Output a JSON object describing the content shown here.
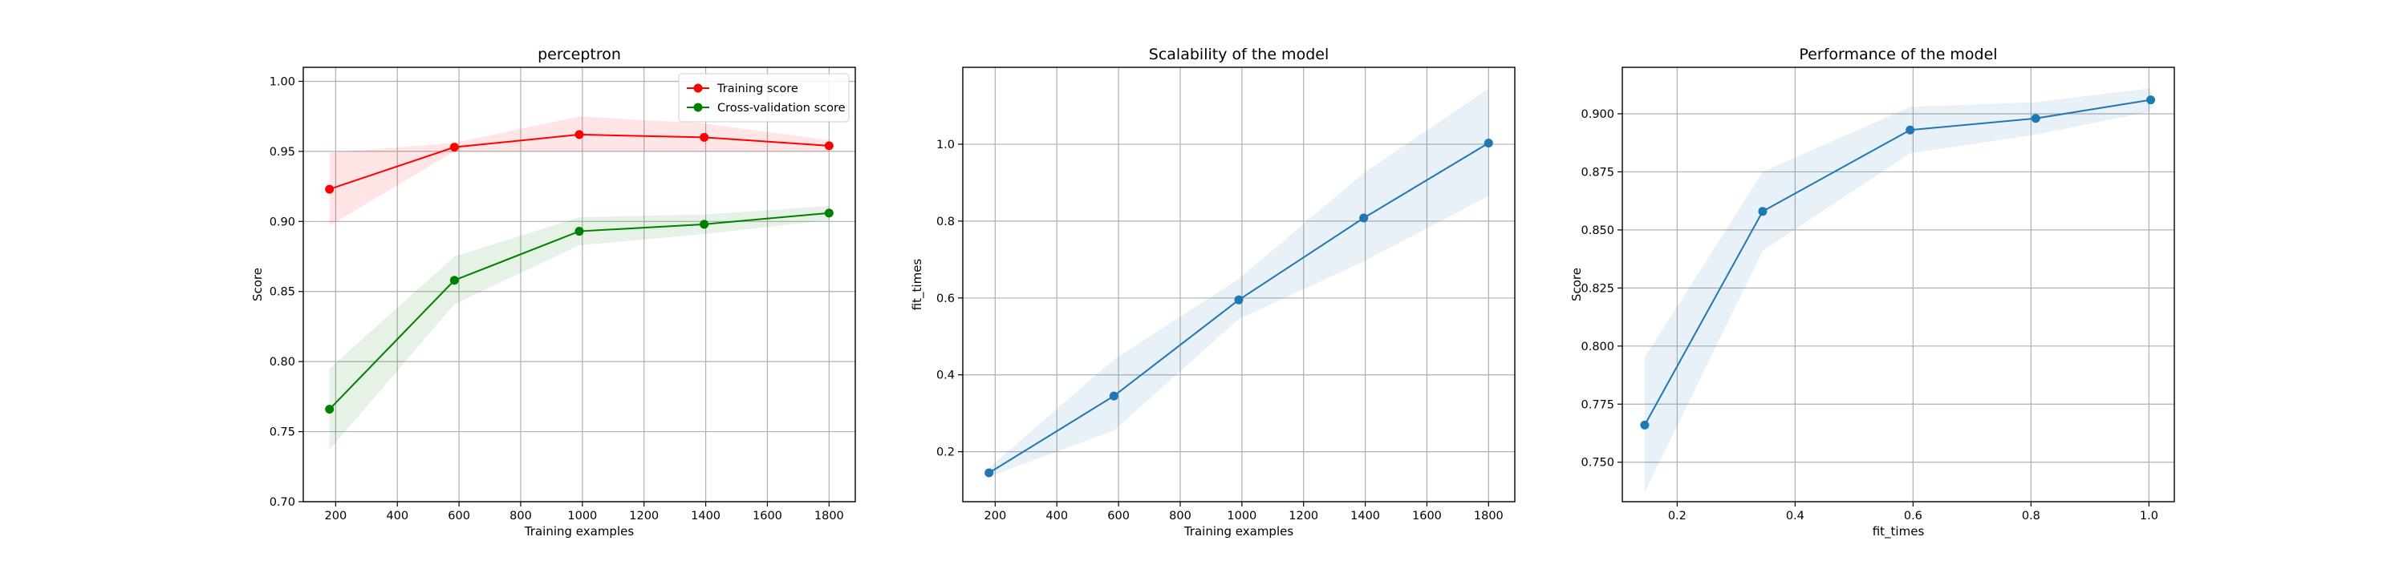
{
  "chart_data": [
    {
      "type": "line",
      "title": "perceptron",
      "xlabel": "Training examples",
      "ylabel": "Score",
      "xlim": [
        95,
        1885
      ],
      "ylim": [
        0.7,
        1.01
      ],
      "xticks": [
        200,
        400,
        600,
        800,
        1000,
        1200,
        1400,
        1600,
        1800
      ],
      "yticks": [
        0.7,
        0.75,
        0.8,
        0.85,
        0.9,
        0.95,
        1.0
      ],
      "ytick_labels": [
        "0.70",
        "0.75",
        "0.80",
        "0.85",
        "0.90",
        "0.95",
        "1.00"
      ],
      "grid": true,
      "legend": "top-right",
      "series": [
        {
          "name": "Training score",
          "color": "#ff0000",
          "x": [
            180,
            585,
            990,
            1395,
            1800
          ],
          "y": [
            0.923,
            0.953,
            0.962,
            0.96,
            0.954
          ],
          "band_lower": [
            0.897,
            0.95,
            0.95,
            0.95,
            0.95
          ],
          "band_upper": [
            0.949,
            0.956,
            0.975,
            0.97,
            0.958
          ]
        },
        {
          "name": "Cross-validation score",
          "color": "#008000",
          "x": [
            180,
            585,
            990,
            1395,
            1800
          ],
          "y": [
            0.766,
            0.858,
            0.893,
            0.898,
            0.906
          ],
          "band_lower": [
            0.737,
            0.841,
            0.883,
            0.891,
            0.901
          ],
          "band_upper": [
            0.795,
            0.875,
            0.903,
            0.905,
            0.911
          ]
        }
      ]
    },
    {
      "type": "line",
      "title": "Scalability of the model",
      "xlabel": "Training examples",
      "ylabel": "fit_times",
      "xlim": [
        95,
        1885
      ],
      "ylim": [
        0.07,
        1.2
      ],
      "xticks": [
        200,
        400,
        600,
        800,
        1000,
        1200,
        1400,
        1600,
        1800
      ],
      "yticks": [
        0.2,
        0.4,
        0.6,
        0.8,
        1.0
      ],
      "ytick_labels": [
        "0.2",
        "0.4",
        "0.6",
        "0.8",
        "1.0"
      ],
      "grid": true,
      "series": [
        {
          "color": "#1f77b4",
          "x": [
            180,
            585,
            990,
            1395,
            1800
          ],
          "y": [
            0.145,
            0.345,
            0.595,
            0.808,
            1.003
          ],
          "band_lower": [
            0.135,
            0.255,
            0.545,
            0.695,
            0.865
          ],
          "band_upper": [
            0.158,
            0.44,
            0.65,
            0.925,
            1.145
          ]
        }
      ]
    },
    {
      "type": "line",
      "title": "Performance of the model",
      "xlabel": "fit_times",
      "ylabel": "Score",
      "xlim": [
        0.107,
        1.043
      ],
      "ylim": [
        0.733,
        0.92
      ],
      "xticks": [
        0.2,
        0.4,
        0.6,
        0.8,
        1.0
      ],
      "xtick_labels": [
        "0.2",
        "0.4",
        "0.6",
        "0.8",
        "1.0"
      ],
      "yticks": [
        0.75,
        0.775,
        0.8,
        0.825,
        0.85,
        0.875,
        0.9
      ],
      "ytick_labels": [
        "0.750",
        "0.775",
        "0.800",
        "0.825",
        "0.850",
        "0.875",
        "0.900"
      ],
      "grid": true,
      "series": [
        {
          "color": "#1f77b4",
          "x": [
            0.145,
            0.345,
            0.595,
            0.808,
            1.003
          ],
          "y": [
            0.766,
            0.858,
            0.893,
            0.898,
            0.906
          ],
          "band_lower": [
            0.737,
            0.841,
            0.883,
            0.891,
            0.901
          ],
          "band_upper": [
            0.795,
            0.875,
            0.903,
            0.905,
            0.911
          ]
        }
      ]
    }
  ]
}
